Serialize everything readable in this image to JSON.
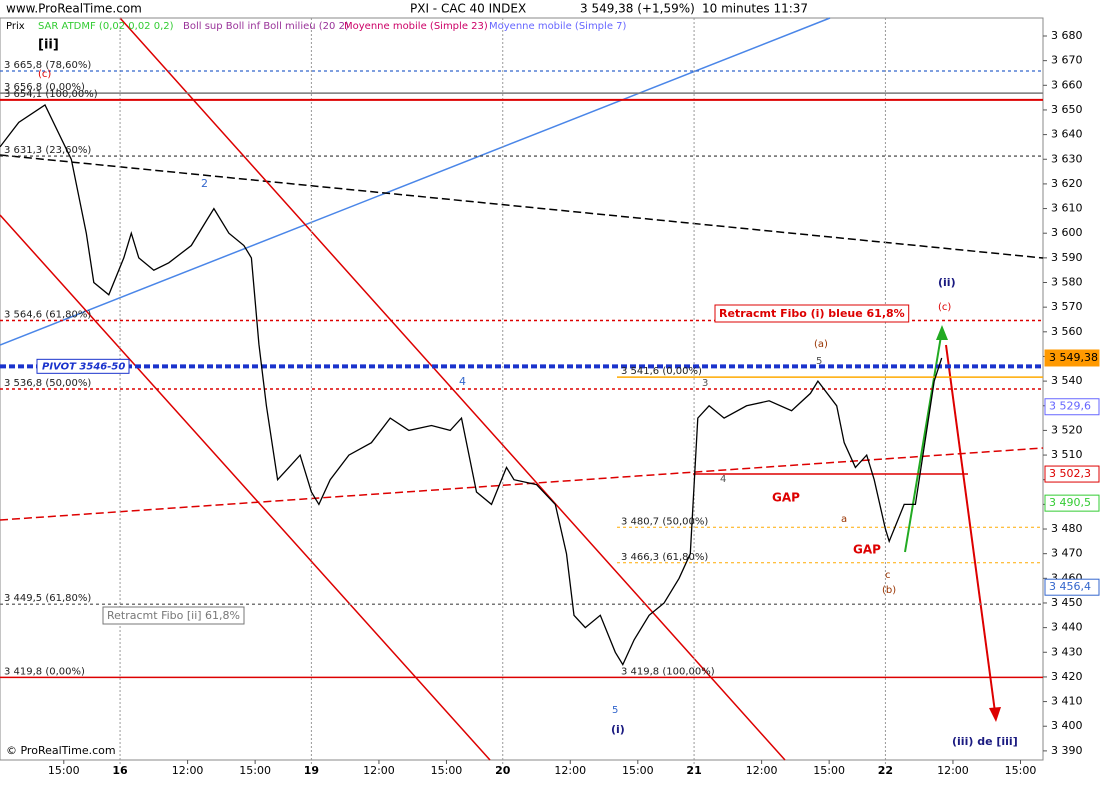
{
  "chart_data": {
    "type": "line",
    "site": "www.ProRealTime.com",
    "title": "PXI - CAC 40 INDEX",
    "last_price": "3 549,38 (+1,59%)",
    "interval": "10 minutes  11:37",
    "copyright": "© ProRealTime.com",
    "indicators": [
      {
        "name": "Prix",
        "color": "#000000"
      },
      {
        "name": "SAR ATDMF (0,02 0,02 0,2)",
        "color": "#33cc33"
      },
      {
        "name": "Boll sup Boll inf Boll milieu (20 2)",
        "color": "#993399"
      },
      {
        "name": "Moyenne mobile (Simple 23)",
        "color": "#cc0066"
      },
      {
        "name": "Moyenne mobile (Simple 7)",
        "color": "#6666ff"
      }
    ],
    "x": [
      -32,
      -27,
      -20,
      -13,
      -9,
      -7,
      -3,
      1,
      3,
      5,
      9,
      13,
      19,
      23,
      25,
      29,
      33,
      35,
      37,
      39,
      42,
      45,
      48,
      51,
      53,
      56,
      61,
      67,
      72,
      77,
      83,
      88,
      91,
      95,
      99,
      103,
      105,
      111,
      116,
      119,
      121,
      124,
      128,
      132,
      134,
      137,
      141,
      145,
      149,
      152,
      154,
      157,
      161,
      167,
      173,
      179,
      184,
      186,
      191,
      193,
      196,
      199,
      201,
      204,
      205,
      209,
      212,
      215,
      217,
      219
    ],
    "series": [
      {
        "name": "Prix",
        "color": "#000000",
        "values": [
          3635,
          3645,
          3652,
          3630,
          3600,
          3580,
          3575,
          3590,
          3600,
          3590,
          3585,
          3588,
          3595,
          3605,
          3610,
          3600,
          3595,
          3590,
          3555,
          3530,
          3500,
          3505,
          3510,
          3495,
          3490,
          3500,
          3510,
          3515,
          3525,
          3520,
          3522,
          3520,
          3525,
          3495,
          3490,
          3505,
          3500,
          3498,
          3490,
          3470,
          3445,
          3440,
          3445,
          3430,
          3425,
          3435,
          3445,
          3450,
          3460,
          3470,
          3525,
          3530,
          3525,
          3530,
          3532,
          3528,
          3535,
          3540,
          3530,
          3515,
          3505,
          3510,
          3500,
          3480,
          3475,
          3490,
          3490,
          3520,
          3540,
          3549.38
        ]
      }
    ],
    "xlim": [
      -32,
      246
    ],
    "xticks": [
      {
        "value": -15,
        "label": "15:00"
      },
      {
        "value": 0,
        "label": "16"
      },
      {
        "value": 18,
        "label": "12:00"
      },
      {
        "value": 36,
        "label": "15:00"
      },
      {
        "value": 51,
        "label": "19"
      },
      {
        "value": 69,
        "label": "12:00"
      },
      {
        "value": 87,
        "label": "15:00"
      },
      {
        "value": 102,
        "label": "20"
      },
      {
        "value": 120,
        "label": "12:00"
      },
      {
        "value": 138,
        "label": "15:00"
      },
      {
        "value": 153,
        "label": "21"
      },
      {
        "value": 171,
        "label": "12:00"
      },
      {
        "value": 189,
        "label": "15:00"
      },
      {
        "value": 204,
        "label": "22"
      },
      {
        "value": 222,
        "label": "12:00"
      },
      {
        "value": 240,
        "label": "15:00"
      }
    ],
    "ylim": [
      3386.3,
      3687.3
    ],
    "yticks": [
      {
        "value": 3390,
        "label": "3 390"
      },
      {
        "value": 3400,
        "label": "3 400"
      },
      {
        "value": 3410,
        "label": "3 410"
      },
      {
        "value": 3420,
        "label": "3 420"
      },
      {
        "value": 3430,
        "label": "3 430"
      },
      {
        "value": 3440,
        "label": "3 440"
      },
      {
        "value": 3450,
        "label": "3 450"
      },
      {
        "value": 3460,
        "label": "3 460"
      },
      {
        "value": 3470,
        "label": "3 470"
      },
      {
        "value": 3480,
        "label": "3 480"
      },
      {
        "value": 3490,
        "label": "3 490"
      },
      {
        "value": 3500,
        "label": "3 500"
      },
      {
        "value": 3510,
        "label": "3 510"
      },
      {
        "value": 3520,
        "label": "3 520"
      },
      {
        "value": 3530,
        "label": "3 530"
      },
      {
        "value": 3540,
        "label": "3 540"
      },
      {
        "value": 3550,
        "label": "3 550"
      },
      {
        "value": 3560,
        "label": "3 560"
      },
      {
        "value": 3570,
        "label": "3 570"
      },
      {
        "value": 3580,
        "label": "3 580"
      },
      {
        "value": 3590,
        "label": "3 590"
      },
      {
        "value": 3600,
        "label": "3 600"
      },
      {
        "value": 3610,
        "label": "3 610"
      },
      {
        "value": 3620,
        "label": "3 620"
      },
      {
        "value": 3630,
        "label": "3 630"
      },
      {
        "value": 3640,
        "label": "3 640"
      },
      {
        "value": 3650,
        "label": "3 650"
      },
      {
        "value": 3660,
        "label": "3 660"
      },
      {
        "value": 3670,
        "label": "3 670"
      },
      {
        "value": 3680,
        "label": "3 680"
      }
    ],
    "levels": [
      {
        "value": 3665.8,
        "label": "3 665,8 (78,60%)",
        "color": "#3366cc"
      },
      {
        "value": 3656.8,
        "label": "3 656,8 (0,00%)",
        "color": "#777777"
      },
      {
        "value": 3654.1,
        "label": "3 654,1 (100,00%)",
        "color": "#dd0000"
      },
      {
        "value": 3631.3,
        "label": "3 631,3 (23,60%)",
        "color": "#333333"
      },
      {
        "value": 3564.6,
        "label": "3 564,6 (61,80%)",
        "color": "#dd0000"
      },
      {
        "value": 3546,
        "label": "PIVOT 3546-50",
        "color": "#1a33cc"
      },
      {
        "value": 3541.6,
        "label": "3 541,6 (0,00%)",
        "color": "#ffaa00"
      },
      {
        "value": 3536.8,
        "label": "3 536,8 (50,00%)",
        "color": "#dd0000"
      },
      {
        "value": 3480.7,
        "label": "3 480,7 (50,00%)",
        "color": "#ffaa00"
      },
      {
        "value": 3466.3,
        "label": "3 466,3 (61,80%)",
        "color": "#ffaa00"
      },
      {
        "value": 3449.5,
        "label": "3 449,5 (61,80%)",
        "color": "#777777"
      },
      {
        "value": 3419.8,
        "label": "3 419,8 (0,00%)",
        "color": "#dd0000"
      },
      {
        "value": 3419.8,
        "label": "3 419,8 (100,00%)",
        "color": "#333333"
      }
    ],
    "price_tags": [
      {
        "value": 3549.38,
        "label": "3 549,38",
        "color": "#ff9900"
      },
      {
        "value": 3529.6,
        "label": "3 529,6",
        "color": "#6666ff"
      },
      {
        "value": 3502.3,
        "label": "3 502,3",
        "color": "#dd0000"
      },
      {
        "value": 3490.5,
        "label": "3 490,5",
        "color": "#33cc33"
      },
      {
        "value": 3456.4,
        "label": "3 456,4",
        "color": "#3366cc"
      }
    ],
    "annotations": [
      "[ii]",
      "(c)",
      "Retracmt Fibo (i) bleue 61,8%",
      "Retracmt Fibo [ii] 61,8%",
      "GAP",
      "GAP",
      "(ii)",
      "(c)",
      "(a)",
      "5",
      "(b)",
      "c",
      "a",
      "(i)",
      "5",
      "(iii) de [iii]",
      "2",
      "4",
      "3",
      "4"
    ]
  }
}
